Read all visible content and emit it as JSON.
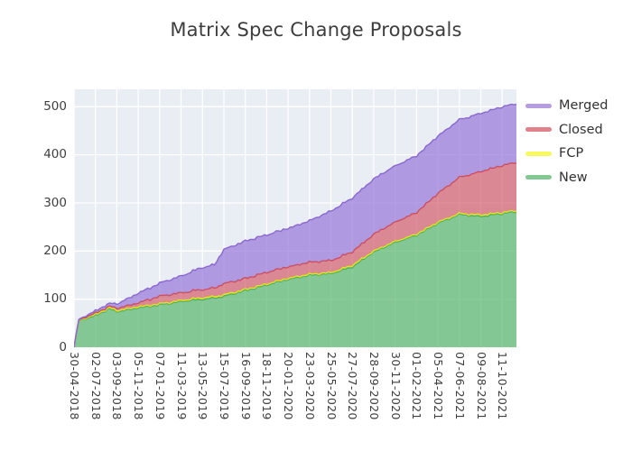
{
  "title": "Matrix Spec Change Proposals",
  "legend": {
    "position": "upper-right",
    "items": [
      {
        "label": "Merged",
        "color": "#b69de1"
      },
      {
        "label": "Closed",
        "color": "#e0818b"
      },
      {
        "label": "FCP",
        "color": "#f7f75e"
      },
      {
        "label": "New",
        "color": "#83c891"
      }
    ]
  },
  "colors": {
    "plot_background": "#e9edf4",
    "gridline": "#ffffff",
    "title_text": "#3d3d3d",
    "tick_text": "#3f3f3f",
    "legend_text": "#333333",
    "series": {
      "New": {
        "fill": "#5cb96f",
        "edge": "#4cae63"
      },
      "FCP": {
        "fill": "#f7f720",
        "edge": "#e3e318"
      },
      "Closed": {
        "fill": "#d4626f",
        "edge": "#cc4f63"
      },
      "Merged": {
        "fill": "#9878d8",
        "edge": "#8a68cf"
      }
    },
    "fill_opacity": 0.72
  },
  "chart_data": {
    "type": "area",
    "stacked": true,
    "title": "Matrix Spec Change Proposals",
    "x_anchors": [
      "30-04-2018",
      "14-05-2018",
      "02-07-2018",
      "13-08-2018",
      "03-09-2018",
      "05-11-2018",
      "07-01-2019",
      "11-03-2019",
      "13-05-2019",
      "17-06-2019",
      "15-07-2019",
      "16-09-2019",
      "18-11-2019",
      "20-01-2020",
      "23-03-2020",
      "25-05-2020",
      "27-07-2020",
      "28-09-2020",
      "30-11-2020",
      "01-02-2021",
      "05-04-2021",
      "07-06-2021",
      "09-08-2021",
      "11-10-2021",
      "22-11-2021"
    ],
    "series": [
      {
        "name": "New",
        "values": [
          0,
          55,
          66,
          80,
          74,
          82,
          88,
          95,
          100,
          102,
          106,
          118,
          130,
          141,
          150,
          153,
          167,
          198,
          218,
          233,
          258,
          276,
          272,
          278,
          281
        ]
      },
      {
        "name": "FCP",
        "values": [
          0,
          1,
          2,
          2,
          2,
          2,
          2,
          2,
          3,
          3,
          3,
          2,
          2,
          2,
          2,
          2,
          3,
          2,
          2,
          2,
          2,
          2,
          3,
          2,
          2
        ]
      },
      {
        "name": "Closed",
        "values": [
          0,
          1,
          3,
          3,
          5,
          8,
          16,
          16,
          17,
          18,
          23,
          23,
          24,
          24,
          25,
          25,
          28,
          35,
          40,
          45,
          60,
          75,
          90,
          98,
          100
        ]
      },
      {
        "name": "Merged",
        "values": [
          0,
          1,
          5,
          6,
          9,
          20,
          27,
          35,
          46,
          48,
          71,
          78,
          78,
          80,
          86,
          103,
          112,
          115,
          117,
          118,
          119,
          120,
          121,
          122,
          122
        ]
      }
    ],
    "x_tick_labels": [
      "30-04-2018",
      "02-07-2018",
      "03-09-2018",
      "05-11-2018",
      "07-01-2019",
      "11-03-2019",
      "13-05-2019",
      "15-07-2019",
      "16-09-2019",
      "18-11-2019",
      "20-01-2020",
      "23-03-2020",
      "25-05-2020",
      "27-07-2020",
      "28-09-2020",
      "30-11-2020",
      "01-02-2021",
      "05-04-2021",
      "07-06-2021",
      "09-08-2021",
      "11-10-2021"
    ],
    "y_ticks": [
      0,
      100,
      200,
      300,
      400,
      500
    ],
    "ylim": [
      0,
      536
    ],
    "grid": true,
    "legend_position": "upper-right"
  }
}
